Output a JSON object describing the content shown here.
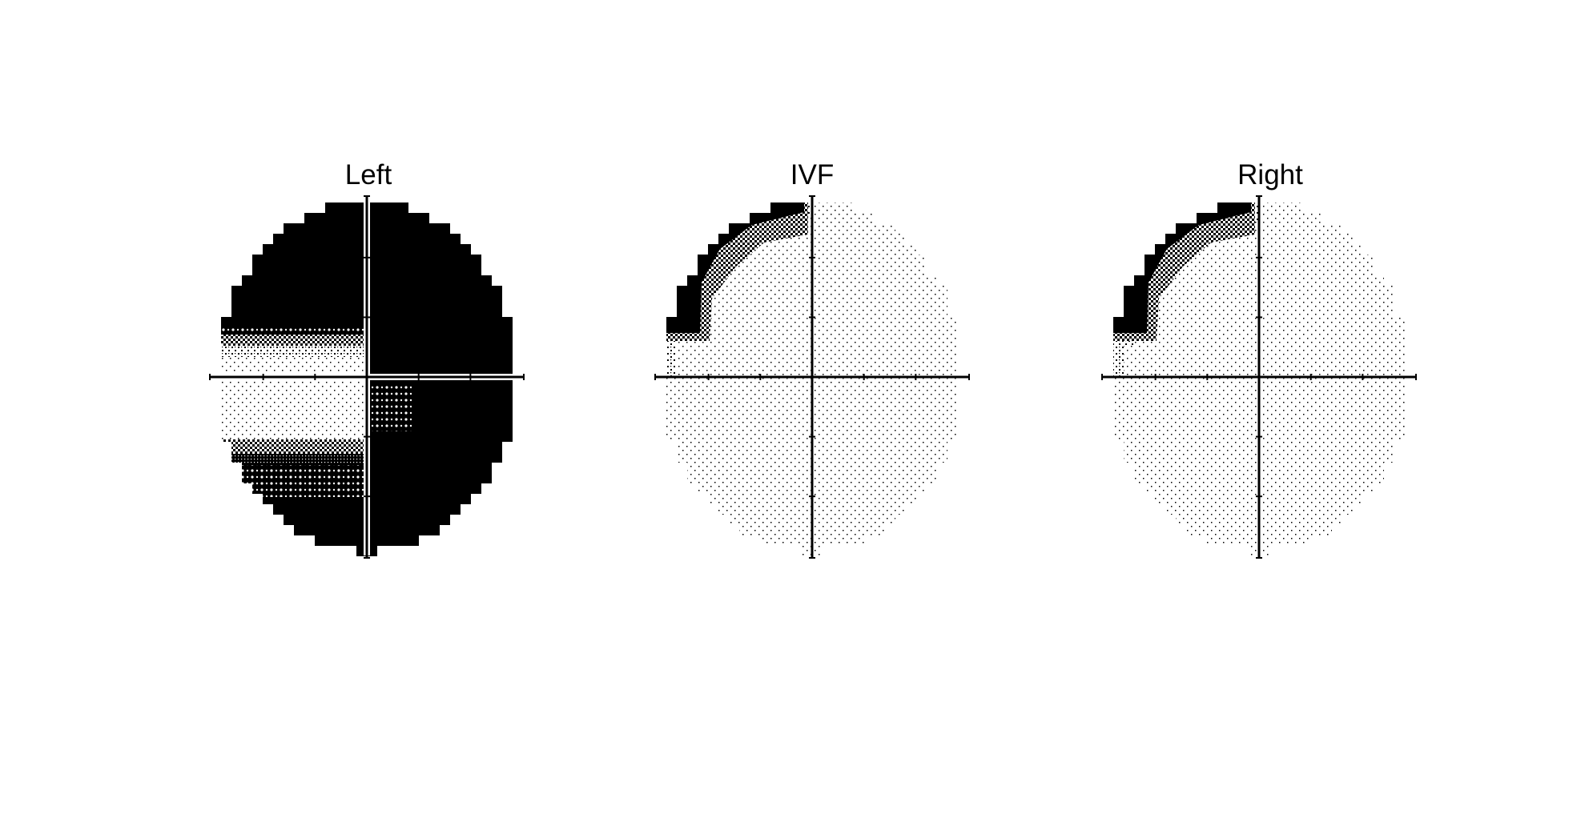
{
  "figure": {
    "panels": [
      {
        "id": "left",
        "title": "Left",
        "quadrants": {
          "upper_left": "black-dense-upper-with-graded-band-near-midline",
          "upper_right": "solid-black",
          "lower_left": "sparse-dots-upper-with-graded-dark-lower",
          "lower_right": "solid-black-with-dotted-patch-near-center"
        }
      },
      {
        "id": "ivf",
        "title": "IVF",
        "quadrants": {
          "upper_left": "black-arc-along-outer-edge-with-graded-inner",
          "upper_right": "sparse-dots",
          "lower_left": "sparse-dots",
          "lower_right": "sparse-dots"
        }
      },
      {
        "id": "right",
        "title": "Right",
        "quadrants": {
          "upper_left": "black-arc-along-outer-edge-with-graded-inner",
          "upper_right": "sparse-dots",
          "lower_left": "sparse-dots",
          "lower_right": "sparse-dots"
        }
      }
    ],
    "colors": {
      "background": "#ffffff",
      "ink": "#000000"
    }
  }
}
